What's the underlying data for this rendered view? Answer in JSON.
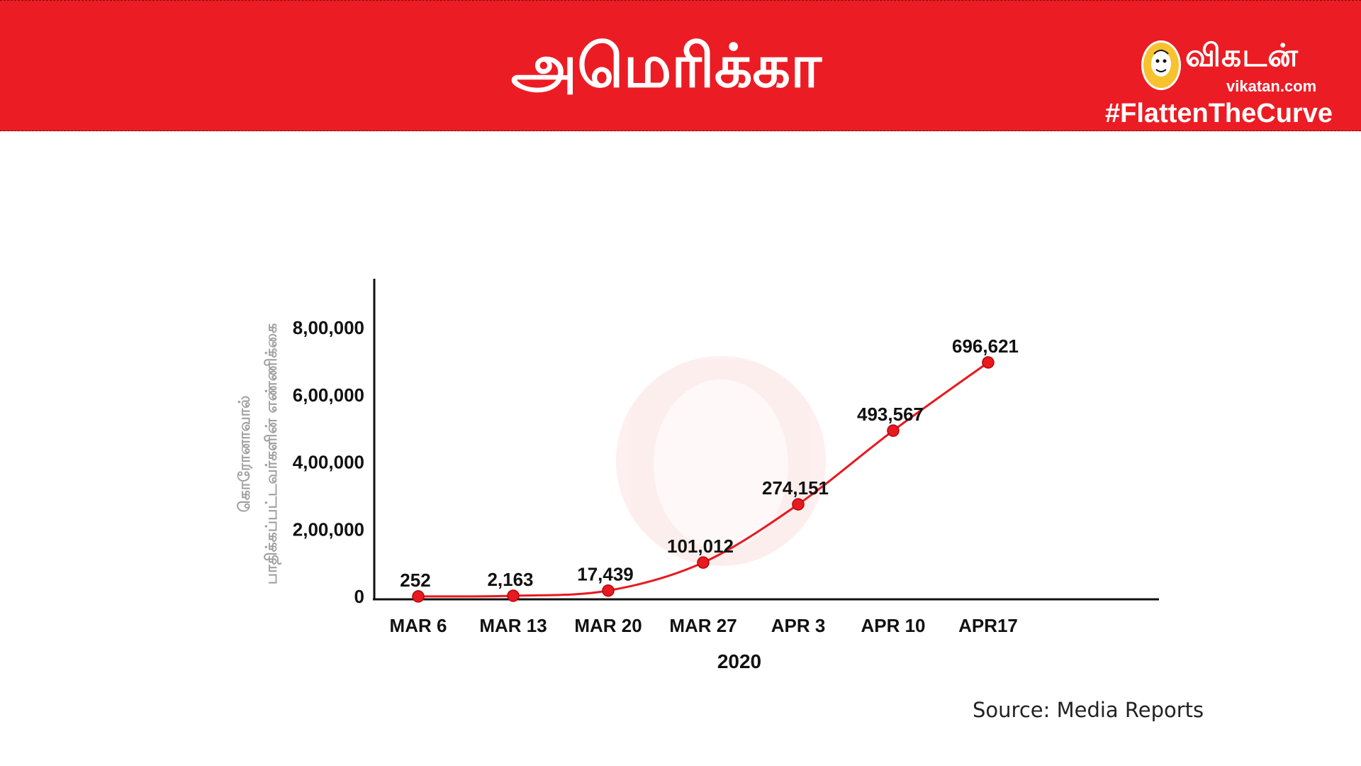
{
  "header": {
    "title": "அமெரிக்கா",
    "brand_name": "விகடன்",
    "brand_url": "vikatan.com",
    "hashtag": "#FlattenTheCurve",
    "logo_icon": "vikatan-mascot-logo"
  },
  "colors": {
    "brand": "#ec1c24",
    "line": "#e8191f",
    "axis": "#111111",
    "ylabel": "#a0a0a0"
  },
  "chart_data": {
    "type": "line",
    "categories": [
      "MAR 6",
      "MAR 13",
      "MAR 20",
      "MAR 27",
      "APR 3",
      "APR 10",
      "APR17"
    ],
    "series": [
      {
        "values": [
          252,
          2163,
          17439,
          101012,
          274151,
          493567,
          696621
        ],
        "data_labels": [
          "252",
          "2,163",
          "17,439",
          "101,012",
          "274,151",
          "493,567",
          "696,621"
        ]
      }
    ],
    "title": "",
    "xlabel": "2020",
    "ylabel_line1": "கொரோனாவால்",
    "ylabel_line2": "பாதிக்கப்பட்டவர்களின் எண்ணிக்கை",
    "y_ticks": [
      {
        "value": 0,
        "label": "0"
      },
      {
        "value": 200000,
        "label": "2,00,000"
      },
      {
        "value": 400000,
        "label": "4,00,000"
      },
      {
        "value": 600000,
        "label": "6,00,000"
      },
      {
        "value": 800000,
        "label": "8,00,000"
      }
    ],
    "ylim": [
      0,
      800000
    ],
    "grid": false,
    "legend": "none",
    "smooth": true
  },
  "footer": {
    "source": "Source: Media Reports"
  }
}
